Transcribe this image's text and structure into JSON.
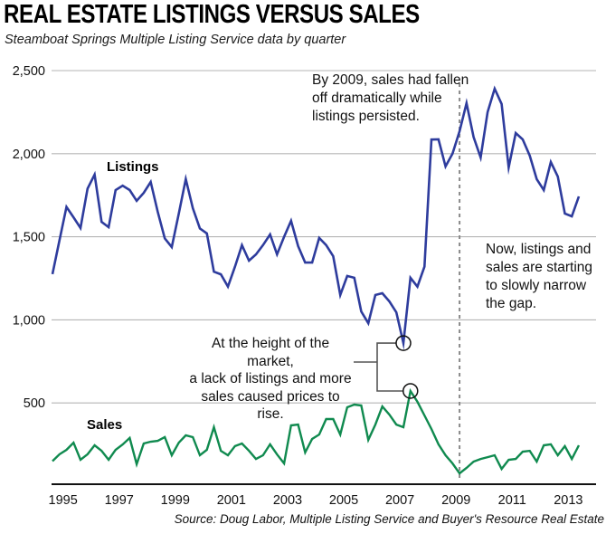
{
  "header": {
    "title": "REAL ESTATE LISTINGS VERSUS SALES",
    "subtitle": "Steamboat Springs Multiple Listing Service data by quarter"
  },
  "annotations": {
    "by_2009": "By 2009, sales had fallen\noff dramatically while\nlistings persisted.",
    "height_of_market": "At the height of the market,\na lack of listings and more\nsales caused prices to rise.",
    "narrowing_gap": "Now, listings and\nsales are starting\nto slowly narrow\nthe gap."
  },
  "source": "Source: Doug Labor, Multiple Listing Service and Buyer's Resource Real Estate",
  "chart_data": {
    "type": "line",
    "title": "REAL ESTATE LISTINGS VERSUS SALES",
    "subtitle": "Steamboat Springs Multiple Listing Service data by quarter",
    "xlabel": "",
    "ylabel": "",
    "ylim": [
      0,
      2500
    ],
    "grid": "horizontal",
    "x_unit": "quarter",
    "x_range": [
      "1995 Q1",
      "2013 Q4"
    ],
    "colors": {
      "listings": "#2e3c9d",
      "sales": "#108a4f",
      "gridline": "#b5b5b5",
      "axis": "#111111",
      "dashed_line": "#8a8a8a",
      "bracket": "#555555"
    },
    "y_ticks": [
      {
        "value": 500,
        "label": "500"
      },
      {
        "value": 1000,
        "label": "1,000"
      },
      {
        "value": 1500,
        "label": "1,500"
      },
      {
        "value": 2000,
        "label": "2,000"
      },
      {
        "value": 2500,
        "label": "2,500"
      }
    ],
    "x_ticks": [
      {
        "year": 1995,
        "label": "1995"
      },
      {
        "year": 1997,
        "label": "1997"
      },
      {
        "year": 1999,
        "label": "1999"
      },
      {
        "year": 2001,
        "label": "2001"
      },
      {
        "year": 2003,
        "label": "2003"
      },
      {
        "year": 2005,
        "label": "2005"
      },
      {
        "year": 2007,
        "label": "2007"
      },
      {
        "year": 2009,
        "label": "2009"
      },
      {
        "year": 2011,
        "label": "2011"
      },
      {
        "year": 2013,
        "label": "2013"
      }
    ],
    "x_quarters": [
      "1995 Q1",
      "1995 Q2",
      "1995 Q3",
      "1995 Q4",
      "1996 Q1",
      "1996 Q2",
      "1996 Q3",
      "1996 Q4",
      "1997 Q1",
      "1997 Q2",
      "1997 Q3",
      "1997 Q4",
      "1998 Q1",
      "1998 Q2",
      "1998 Q3",
      "1998 Q4",
      "1999 Q1",
      "1999 Q2",
      "1999 Q3",
      "1999 Q4",
      "2000 Q1",
      "2000 Q2",
      "2000 Q3",
      "2000 Q4",
      "2001 Q1",
      "2001 Q2",
      "2001 Q3",
      "2001 Q4",
      "2002 Q1",
      "2002 Q2",
      "2002 Q3",
      "2002 Q4",
      "2003 Q1",
      "2003 Q2",
      "2003 Q3",
      "2003 Q4",
      "2004 Q1",
      "2004 Q2",
      "2004 Q3",
      "2004 Q4",
      "2005 Q1",
      "2005 Q2",
      "2005 Q3",
      "2005 Q4",
      "2006 Q1",
      "2006 Q2",
      "2006 Q3",
      "2006 Q4",
      "2007 Q1",
      "2007 Q2",
      "2007 Q3",
      "2007 Q4",
      "2008 Q1",
      "2008 Q2",
      "2008 Q3",
      "2008 Q4",
      "2009 Q1",
      "2009 Q2",
      "2009 Q3",
      "2009 Q4",
      "2010 Q1",
      "2010 Q2",
      "2010 Q3",
      "2010 Q4",
      "2011 Q1",
      "2011 Q2",
      "2011 Q3",
      "2011 Q4",
      "2012 Q1",
      "2012 Q2",
      "2012 Q3",
      "2012 Q4",
      "2013 Q1",
      "2013 Q2",
      "2013 Q3",
      "2013 Q4"
    ],
    "series": [
      {
        "name": "Listings",
        "color": "#2e3c9d",
        "values": [
          1275,
          1480,
          1680,
          1617,
          1553,
          1790,
          1874,
          1590,
          1558,
          1781,
          1808,
          1781,
          1716,
          1764,
          1830,
          1650,
          1490,
          1438,
          1640,
          1847,
          1672,
          1550,
          1520,
          1290,
          1274,
          1200,
          1320,
          1450,
          1356,
          1394,
          1450,
          1514,
          1394,
          1500,
          1596,
          1444,
          1345,
          1345,
          1493,
          1450,
          1383,
          1150,
          1264,
          1253,
          1050,
          980,
          1150,
          1160,
          1111,
          1045,
          860,
          1253,
          1200,
          1320,
          2085,
          2086,
          1923,
          2000,
          2135,
          2304,
          2100,
          1977,
          2250,
          2391,
          2299,
          1917,
          2124,
          2086,
          1988,
          1847,
          1781,
          1950,
          1863,
          1640,
          1623,
          1743
        ]
      },
      {
        "name": "Sales",
        "color": "#108a4f",
        "values": [
          150,
          191,
          218,
          261,
          158,
          191,
          245,
          212,
          158,
          218,
          250,
          289,
          131,
          256,
          267,
          272,
          294,
          185,
          261,
          305,
          294,
          185,
          218,
          354,
          212,
          185,
          240,
          256,
          212,
          163,
          185,
          251,
          190,
          136,
          365,
          370,
          202,
          283,
          310,
          403,
          403,
          310,
          474,
          490,
          485,
          278,
          370,
          479,
          430,
          370,
          354,
          572,
          507,
          425,
          343,
          251,
          185,
          136,
          76,
          109,
          147,
          163,
          174,
          185,
          103,
          158,
          163,
          207,
          212,
          147,
          245,
          251,
          185,
          240,
          163,
          245
        ]
      }
    ],
    "dashed_line": {
      "quarter_index": 58,
      "quarter": "2009 Q3"
    },
    "highlight_circles": [
      {
        "series": "Listings",
        "quarter_index": 50,
        "quarter": "2007 Q3",
        "value": 860
      },
      {
        "series": "Sales",
        "quarter_index": 51,
        "quarter": "2007 Q4",
        "value": 572
      }
    ]
  }
}
